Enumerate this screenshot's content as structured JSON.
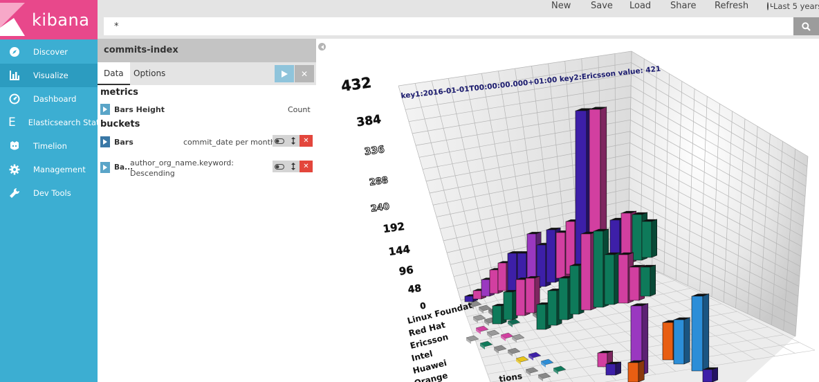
{
  "app": {
    "logo_text": "kibana"
  },
  "sidebar": {
    "items": [
      {
        "label": "Discover",
        "icon": "compass-icon"
      },
      {
        "label": "Visualize",
        "icon": "bar-chart-icon"
      },
      {
        "label": "Dashboard",
        "icon": "dashboard-icon"
      },
      {
        "label": "Elasticsearch Status",
        "icon": "elasticsearch-icon"
      },
      {
        "label": "Timelion",
        "icon": "timelion-icon"
      },
      {
        "label": "Management",
        "icon": "gear-icon"
      },
      {
        "label": "Dev Tools",
        "icon": "wrench-icon"
      }
    ],
    "active": "Visualize"
  },
  "topbar": {
    "new_label": "New",
    "save_label": "Save",
    "load_label": "Load",
    "share_label": "Share",
    "refresh_label": "Refresh",
    "time_label": "Last 5 years"
  },
  "query": {
    "value": "*"
  },
  "editor": {
    "index_name": "commits-index",
    "tabs": [
      "Data",
      "Options"
    ],
    "metrics_heading": "metrics",
    "buckets_heading": "buckets",
    "metric": {
      "name": "Bars Height",
      "desc": "Count"
    },
    "buckets": [
      {
        "name": "Bars",
        "desc": "commit_date per month"
      },
      {
        "name": "Ba...",
        "desc_line1": "author_org_name.keyword:",
        "desc_line2": "Descending"
      }
    ]
  },
  "chart_data": {
    "type": "bar",
    "tooltip": "key1:2016-01-01T00:00:00.000+01:00 key2:Ericsson value: 421",
    "y_ticks": [
      "432",
      "384",
      "336",
      "288",
      "240",
      "192",
      "144",
      "96",
      "48",
      "0"
    ],
    "categories": [
      "Linux Foundat",
      "Red Hat",
      "Ericsson",
      "Intel",
      "Huawei",
      "Orange"
    ],
    "x_axis_fragment": "tions",
    "ylim": [
      0,
      432
    ],
    "colors": [
      "#3d1fa8",
      "#d23fa0",
      "#0e7a5a",
      "#e85e12",
      "#2c8ed8",
      "#9a38c0",
      "#e8c41a"
    ]
  }
}
